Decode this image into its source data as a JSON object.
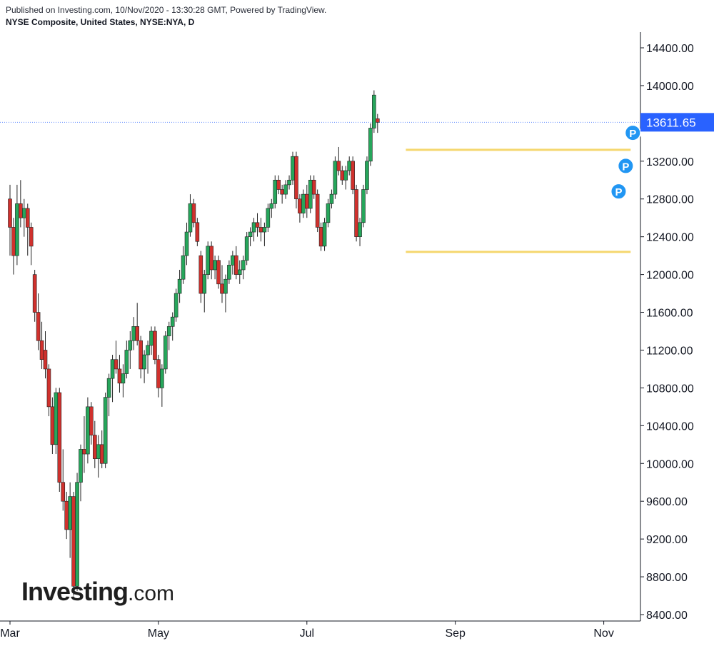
{
  "header": {
    "published": "Published on Investing.com, 10/Nov/2020 - 13:30:28 GMT, Powered by TradingView.",
    "symbol": "NYSE Composite, United States, NYSE:NYA, D"
  },
  "logo": {
    "main": "Investing",
    "suffix": ".com"
  },
  "colors": {
    "up": "#26a65b",
    "down": "#d0312d",
    "wick": "#222222",
    "channel": "#f5d76e",
    "last_price_bg": "#2962ff",
    "pivot": "#2196f3",
    "axis": "#131722"
  },
  "chart_data": {
    "type": "candlestick",
    "interval": "D",
    "ylim": [
      8300,
      14650
    ],
    "y_ticks": [
      8400,
      8800,
      9200,
      9600,
      10000,
      10400,
      10800,
      11200,
      11600,
      12000,
      12400,
      12800,
      13200,
      13600,
      14000,
      14400
    ],
    "y_tick_labels": [
      "8400.00",
      "8800.00",
      "9200.00",
      "9600.00",
      "10000.00",
      "10400.00",
      "10800.00",
      "11200.00",
      "11600.00",
      "12000.00",
      "12400.00",
      "12800.00",
      "13200.00",
      "13600.00",
      "14000.00",
      "14400.00"
    ],
    "x_labels": [
      {
        "label": "Mar",
        "bar": 0
      },
      {
        "label": "May",
        "bar": 42
      },
      {
        "label": "Jul",
        "bar": 84
      },
      {
        "label": "Sep",
        "bar": 126
      },
      {
        "label": "Nov",
        "bar": 168
      }
    ],
    "last_price": 13611.65,
    "last_price_label": "13611.65",
    "channel_lines": [
      {
        "from_bar": 112,
        "to_bar": 175,
        "value": 13320
      },
      {
        "from_bar": 112,
        "to_bar": 175,
        "value": 12240
      }
    ],
    "pivot_markers": [
      {
        "bar": 175,
        "value": 13500,
        "label": "P"
      },
      {
        "bar": 173,
        "value": 13150,
        "label": "P"
      },
      {
        "bar": 171,
        "value": 12880,
        "label": "P"
      }
    ],
    "candles": [
      [
        12800,
        12950,
        12200,
        12500
      ],
      [
        12500,
        12600,
        12000,
        12200
      ],
      [
        12200,
        12950,
        12100,
        12750
      ],
      [
        12750,
        13000,
        12500,
        12600
      ],
      [
        12600,
        12800,
        12400,
        12700
      ],
      [
        12700,
        12750,
        12200,
        12500
      ],
      [
        12500,
        12550,
        12100,
        12300
      ],
      [
        12000,
        12050,
        11500,
        11600
      ],
      [
        11600,
        11800,
        11200,
        11300
      ],
      [
        11300,
        11500,
        11000,
        11100
      ],
      [
        11200,
        11400,
        10900,
        11000
      ],
      [
        11000,
        11050,
        10500,
        10600
      ],
      [
        10600,
        10700,
        10100,
        10200
      ],
      [
        10200,
        10800,
        10100,
        10750
      ],
      [
        10750,
        10800,
        9700,
        9800
      ],
      [
        9800,
        10150,
        9500,
        9600
      ],
      [
        9600,
        9700,
        9200,
        9300
      ],
      [
        9300,
        9800,
        9000,
        9650
      ],
      [
        9650,
        9700,
        8600,
        8700
      ],
      [
        8700,
        9900,
        8650,
        9800
      ],
      [
        9800,
        10200,
        9600,
        10150
      ],
      [
        10150,
        10500,
        9900,
        10100
      ],
      [
        10100,
        10700,
        10000,
        10600
      ],
      [
        10600,
        10650,
        10200,
        10300
      ],
      [
        10300,
        10450,
        9950,
        10050
      ],
      [
        10050,
        10300,
        9850,
        10200
      ],
      [
        10200,
        10350,
        9950,
        10000
      ],
      [
        10000,
        10750,
        9950,
        10700
      ],
      [
        10700,
        10950,
        10500,
        10900
      ],
      [
        10900,
        11150,
        10650,
        11100
      ],
      [
        11100,
        11300,
        10950,
        11000
      ],
      [
        11000,
        11150,
        10750,
        10850
      ],
      [
        10850,
        11050,
        10700,
        10950
      ],
      [
        10950,
        11300,
        10900,
        11200
      ],
      [
        11200,
        11400,
        11000,
        11300
      ],
      [
        11300,
        11550,
        11200,
        11450
      ],
      [
        11450,
        11700,
        11250,
        11300
      ],
      [
        11300,
        11350,
        10900,
        11000
      ],
      [
        11000,
        11200,
        10850,
        11150
      ],
      [
        11150,
        11300,
        10950,
        11250
      ],
      [
        11250,
        11450,
        11150,
        11400
      ],
      [
        11400,
        11450,
        11050,
        11100
      ],
      [
        11100,
        11150,
        10700,
        10800
      ],
      [
        10800,
        11050,
        10600,
        11000
      ],
      [
        11000,
        11400,
        10950,
        11350
      ],
      [
        11350,
        11500,
        11200,
        11450
      ],
      [
        11450,
        11600,
        11300,
        11550
      ],
      [
        11550,
        11850,
        11500,
        11800
      ],
      [
        11800,
        12050,
        11700,
        11950
      ],
      [
        11950,
        12300,
        11900,
        12200
      ],
      [
        12200,
        12550,
        12100,
        12450
      ],
      [
        12450,
        12850,
        12400,
        12750
      ],
      [
        12750,
        12800,
        12500,
        12550
      ],
      [
        12550,
        12600,
        12300,
        12350
      ],
      [
        12200,
        12250,
        11700,
        11800
      ],
      [
        11800,
        12050,
        11600,
        12000
      ],
      [
        12000,
        12350,
        11950,
        12300
      ],
      [
        12300,
        12350,
        11950,
        12050
      ],
      [
        12050,
        12200,
        11950,
        12150
      ],
      [
        12150,
        12200,
        11850,
        11900
      ],
      [
        11900,
        12100,
        11700,
        11800
      ],
      [
        11800,
        12000,
        11600,
        11950
      ],
      [
        11950,
        12150,
        11900,
        12100
      ],
      [
        12100,
        12250,
        12000,
        12200
      ],
      [
        12200,
        12300,
        11950,
        12000
      ],
      [
        12000,
        12150,
        11900,
        12050
      ],
      [
        12050,
        12200,
        11950,
        12150
      ],
      [
        12150,
        12450,
        12100,
        12400
      ],
      [
        12400,
        12500,
        12300,
        12450
      ],
      [
        12450,
        12600,
        12350,
        12550
      ],
      [
        12550,
        12650,
        12400,
        12500
      ],
      [
        12500,
        12600,
        12350,
        12450
      ],
      [
        12450,
        12550,
        12300,
        12500
      ],
      [
        12500,
        12750,
        12450,
        12700
      ],
      [
        12700,
        12800,
        12600,
        12750
      ],
      [
        12750,
        13050,
        12700,
        13000
      ],
      [
        13000,
        13050,
        12850,
        12900
      ],
      [
        12900,
        12950,
        12750,
        12850
      ],
      [
        12850,
        13000,
        12800,
        12950
      ],
      [
        12950,
        13050,
        12900,
        13000
      ],
      [
        13000,
        13300,
        12950,
        13250
      ],
      [
        13250,
        13300,
        12700,
        12800
      ],
      [
        12800,
        12850,
        12550,
        12650
      ],
      [
        12650,
        12900,
        12600,
        12850
      ],
      [
        12850,
        12950,
        12600,
        12700
      ],
      [
        12700,
        13050,
        12650,
        13000
      ],
      [
        13000,
        13050,
        12800,
        12850
      ],
      [
        12850,
        12900,
        12450,
        12500
      ],
      [
        12500,
        12550,
        12250,
        12300
      ],
      [
        12300,
        12600,
        12250,
        12550
      ],
      [
        12550,
        12800,
        12500,
        12750
      ],
      [
        12750,
        12900,
        12700,
        12850
      ],
      [
        12850,
        13250,
        12800,
        13200
      ],
      [
        13200,
        13350,
        13050,
        13100
      ],
      [
        13100,
        13150,
        12950,
        13000
      ],
      [
        13000,
        13150,
        12900,
        13100
      ],
      [
        13100,
        13250,
        13050,
        13200
      ],
      [
        13200,
        13250,
        12850,
        12900
      ],
      [
        12900,
        12950,
        12350,
        12400
      ],
      [
        12400,
        12600,
        12300,
        12550
      ],
      [
        12550,
        12950,
        12500,
        12900
      ],
      [
        12900,
        13250,
        12850,
        13200
      ],
      [
        13200,
        13600,
        13150,
        13550
      ],
      [
        13550,
        13950,
        13500,
        13900
      ],
      [
        13650,
        13700,
        13500,
        13611
      ]
    ]
  }
}
